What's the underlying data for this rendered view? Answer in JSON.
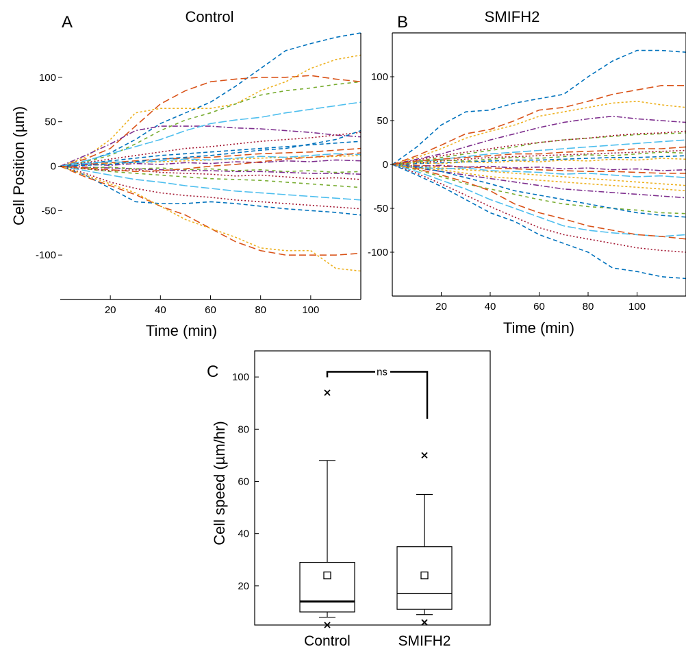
{
  "colors": [
    "#0072BD",
    "#D95319",
    "#EDB120",
    "#7E2F8E",
    "#77AC30",
    "#4DBEEE",
    "#A2142F"
  ],
  "chart_data": [
    {
      "panel": "A",
      "title": "Control",
      "type": "line",
      "xlabel": "Time (min)",
      "ylabel": "Cell Position (µm)",
      "xlim": [
        0,
        120
      ],
      "ylim": [
        -150,
        150
      ],
      "xticks": [
        20,
        40,
        60,
        80,
        100
      ],
      "yticks": [
        100,
        50,
        0,
        -50,
        -100
      ],
      "x": [
        0,
        10,
        20,
        30,
        40,
        50,
        60,
        70,
        80,
        90,
        100,
        110,
        120
      ],
      "series": [
        {
          "values": [
            0,
            5,
            15,
            30,
            48,
            60,
            72,
            90,
            110,
            130,
            138,
            145,
            150
          ]
        },
        {
          "values": [
            0,
            8,
            20,
            45,
            70,
            85,
            95,
            98,
            100,
            100,
            102,
            98,
            95
          ]
        },
        {
          "values": [
            0,
            10,
            30,
            60,
            65,
            65,
            65,
            70,
            85,
            95,
            110,
            120,
            125
          ]
        },
        {
          "values": [
            0,
            12,
            25,
            40,
            45,
            45,
            45,
            43,
            42,
            40,
            38,
            35,
            33
          ]
        },
        {
          "values": [
            0,
            5,
            12,
            25,
            40,
            52,
            60,
            70,
            80,
            85,
            88,
            92,
            95
          ]
        },
        {
          "values": [
            0,
            6,
            14,
            22,
            30,
            40,
            48,
            52,
            55,
            60,
            64,
            68,
            72
          ]
        },
        {
          "values": [
            0,
            4,
            8,
            12,
            16,
            20,
            22,
            25,
            28,
            30,
            32,
            35,
            38
          ]
        },
        {
          "values": [
            0,
            3,
            6,
            9,
            12,
            14,
            16,
            18,
            20,
            22,
            24,
            26,
            28
          ]
        },
        {
          "values": [
            0,
            2,
            4,
            6,
            8,
            9,
            10,
            12,
            14,
            15,
            16,
            18,
            20
          ]
        },
        {
          "values": [
            0,
            1,
            3,
            4,
            5,
            6,
            7,
            8,
            9,
            10,
            10,
            11,
            12
          ]
        },
        {
          "values": [
            0,
            -1,
            -2,
            -3,
            -4,
            -5,
            -5,
            -6,
            -6,
            -7,
            -8,
            -8,
            -9
          ]
        },
        {
          "values": [
            0,
            -3,
            -6,
            -8,
            -10,
            -12,
            -14,
            -15,
            -16,
            -18,
            -20,
            -22,
            -24
          ]
        },
        {
          "values": [
            0,
            -5,
            -10,
            -15,
            -18,
            -22,
            -25,
            -28,
            -30,
            -32,
            -34,
            -36,
            -38
          ]
        },
        {
          "values": [
            0,
            -8,
            -18,
            -25,
            -30,
            -33,
            -35,
            -38,
            -40,
            -42,
            -44,
            -46,
            -48
          ]
        },
        {
          "values": [
            0,
            -10,
            -25,
            -40,
            -42,
            -42,
            -40,
            -42,
            -45,
            -48,
            -50,
            -52,
            -55
          ]
        },
        {
          "values": [
            0,
            -12,
            -22,
            -32,
            -45,
            -55,
            -70,
            -85,
            -95,
            -100,
            -100,
            -100,
            -98
          ]
        },
        {
          "values": [
            0,
            -10,
            -20,
            -30,
            -45,
            -60,
            -70,
            -80,
            -92,
            -95,
            -95,
            -115,
            -118
          ]
        },
        {
          "values": [
            0,
            2,
            1,
            3,
            2,
            4,
            3,
            5,
            4,
            6,
            5,
            7,
            6
          ]
        },
        {
          "values": [
            0,
            -2,
            -1,
            -3,
            -2,
            -4,
            -3,
            -5,
            -4,
            -6,
            -5,
            -7,
            -6
          ]
        },
        {
          "values": [
            0,
            3,
            5,
            4,
            6,
            8,
            7,
            9,
            11,
            10,
            12,
            14,
            13
          ]
        },
        {
          "values": [
            0,
            -3,
            -5,
            -4,
            -7,
            -8,
            -9,
            -11,
            -10,
            -12,
            -14,
            -13,
            -15
          ]
        },
        {
          "values": [
            0,
            1,
            2,
            5,
            8,
            10,
            12,
            15,
            18,
            20,
            25,
            30,
            40
          ]
        },
        {
          "values": [
            0,
            -2,
            -4,
            -6,
            -5,
            -3,
            0,
            2,
            5,
            8,
            10,
            12,
            15
          ]
        }
      ]
    },
    {
      "panel": "B",
      "title": "SMIFH2",
      "type": "line",
      "xlabel": "Time (min)",
      "ylabel": "",
      "xlim": [
        0,
        120
      ],
      "ylim": [
        -150,
        150
      ],
      "xticks": [
        20,
        40,
        60,
        80,
        100
      ],
      "yticks": [
        100,
        50,
        0,
        -50,
        -100
      ],
      "x": [
        0,
        10,
        20,
        30,
        40,
        50,
        60,
        70,
        80,
        90,
        100,
        110,
        120
      ],
      "series": [
        {
          "values": [
            0,
            20,
            45,
            60,
            62,
            70,
            75,
            80,
            100,
            118,
            130,
            130,
            128
          ]
        },
        {
          "values": [
            0,
            10,
            22,
            35,
            40,
            50,
            62,
            65,
            72,
            80,
            85,
            90,
            90
          ]
        },
        {
          "values": [
            0,
            8,
            18,
            30,
            38,
            45,
            55,
            60,
            65,
            70,
            72,
            68,
            65
          ]
        },
        {
          "values": [
            0,
            6,
            12,
            20,
            28,
            35,
            42,
            48,
            52,
            55,
            52,
            50,
            48
          ]
        },
        {
          "values": [
            0,
            4,
            8,
            12,
            16,
            20,
            25,
            28,
            30,
            32,
            34,
            35,
            36
          ]
        },
        {
          "values": [
            0,
            3,
            6,
            9,
            12,
            14,
            16,
            18,
            20,
            22,
            24,
            26,
            28
          ]
        },
        {
          "values": [
            0,
            2,
            4,
            6,
            8,
            9,
            10,
            11,
            12,
            13,
            14,
            15,
            16
          ]
        },
        {
          "values": [
            0,
            1,
            2,
            3,
            4,
            5,
            5,
            6,
            7,
            8,
            8,
            9,
            10
          ]
        },
        {
          "values": [
            0,
            -1,
            -2,
            -3,
            -4,
            -5,
            -6,
            -7,
            -8,
            -8,
            -9,
            -10,
            -10
          ]
        },
        {
          "values": [
            0,
            -2,
            -4,
            -6,
            -8,
            -10,
            -12,
            -14,
            -16,
            -18,
            -20,
            -22,
            -24
          ]
        },
        {
          "values": [
            0,
            -4,
            -8,
            -12,
            -16,
            -20,
            -24,
            -28,
            -30,
            -32,
            -34,
            -36,
            -38
          ]
        },
        {
          "values": [
            0,
            -6,
            -14,
            -22,
            -28,
            -34,
            -40,
            -45,
            -48,
            -50,
            -52,
            -55,
            -56
          ]
        },
        {
          "values": [
            0,
            -8,
            -18,
            -28,
            -40,
            -50,
            -60,
            -70,
            -75,
            -78,
            -80,
            -82,
            -80
          ]
        },
        {
          "values": [
            0,
            -10,
            -22,
            -35,
            -48,
            -60,
            -72,
            -80,
            -85,
            -90,
            -95,
            -98,
            -100
          ]
        },
        {
          "values": [
            0,
            -12,
            -25,
            -40,
            -55,
            -65,
            -80,
            -90,
            -100,
            -118,
            -122,
            -128,
            -130
          ]
        },
        {
          "values": [
            0,
            -5,
            -12,
            -20,
            -30,
            -45,
            -55,
            -62,
            -70,
            -75,
            -80,
            -82,
            -85
          ]
        },
        {
          "values": [
            0,
            2,
            1,
            3,
            2,
            4,
            3,
            5,
            4,
            6,
            5,
            7,
            6
          ]
        },
        {
          "values": [
            0,
            -2,
            -1,
            -3,
            -2,
            -4,
            -3,
            -5,
            -4,
            -6,
            -5,
            -7,
            -6
          ]
        },
        {
          "values": [
            0,
            3,
            5,
            4,
            6,
            8,
            7,
            9,
            11,
            10,
            12,
            14,
            13
          ]
        },
        {
          "values": [
            0,
            -3,
            -5,
            -4,
            -7,
            -8,
            -9,
            -11,
            -10,
            -12,
            -14,
            -13,
            -15
          ]
        },
        {
          "values": [
            0,
            5,
            10,
            14,
            18,
            22,
            25,
            28,
            30,
            33,
            35,
            36,
            38
          ]
        },
        {
          "values": [
            0,
            -3,
            -8,
            -15,
            -22,
            -30,
            -35,
            -40,
            -45,
            -50,
            -55,
            -58,
            -60
          ]
        },
        {
          "values": [
            0,
            4,
            6,
            8,
            10,
            12,
            12,
            14,
            15,
            16,
            18,
            18,
            20
          ]
        },
        {
          "values": [
            0,
            -4,
            -6,
            -10,
            -14,
            -16,
            -18,
            -20,
            -22,
            -24,
            -26,
            -28,
            -30
          ]
        }
      ]
    },
    {
      "panel": "C",
      "title": "",
      "type": "box",
      "xlabel": "",
      "ylabel": "Cell speed (µm/hr)",
      "ylim": [
        5,
        110
      ],
      "yticks": [
        100,
        80,
        60,
        40,
        20
      ],
      "categories": [
        "Control",
        "SMIFH2"
      ],
      "boxes": [
        {
          "q1": 10,
          "median": 14,
          "q3": 29,
          "mean": 24,
          "whisker_low": 8,
          "whisker_high": 68,
          "min_marker": 5,
          "max_marker": 94
        },
        {
          "q1": 11,
          "median": 17,
          "q3": 35,
          "mean": 24,
          "whisker_low": 9,
          "whisker_high": 55,
          "min_marker": 6,
          "max_marker": 70
        }
      ],
      "significance": {
        "label": "ns",
        "level": 102
      }
    }
  ]
}
